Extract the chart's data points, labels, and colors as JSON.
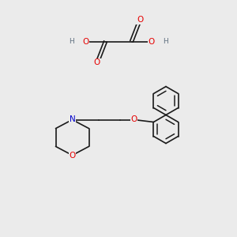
{
  "background_color": "#ebebeb",
  "bond_color": "#1a1a1a",
  "bond_width": 1.2,
  "atom_colors": {
    "O": "#e60000",
    "N": "#0000cc",
    "C": "#1a1a1a",
    "H": "#607080"
  },
  "font_size_atom": 7.5,
  "font_size_H": 6.5,
  "xlim": [
    0,
    10
  ],
  "ylim": [
    0,
    10
  ]
}
